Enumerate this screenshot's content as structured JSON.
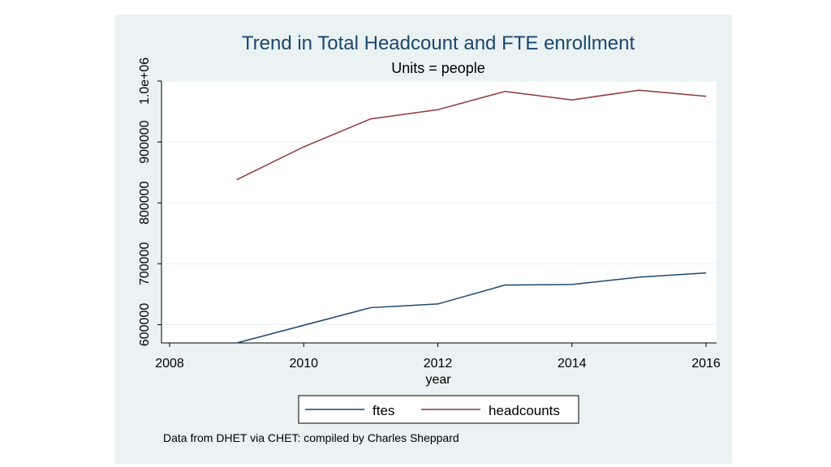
{
  "chart_data": {
    "type": "line",
    "title": "Trend in Total Headcount and FTE enrollment",
    "subtitle": "Units = people",
    "xlabel": "year",
    "ylabel": "",
    "x": [
      2009,
      2010,
      2011,
      2012,
      2013,
      2014,
      2015,
      2016
    ],
    "xlim": [
      2008,
      2016
    ],
    "ylim": [
      570000,
      1000000
    ],
    "x_ticks": [
      2008,
      2010,
      2012,
      2014,
      2016
    ],
    "y_ticks": [
      600000,
      700000,
      800000,
      900000,
      1000000
    ],
    "y_tick_labels": [
      "600000",
      "700000",
      "800000",
      "900000",
      "1.0e+06"
    ],
    "grid": true,
    "legend_position": "bottom",
    "series": [
      {
        "name": "ftes",
        "color": "#1a476f",
        "values": [
          570000,
          599000,
          628000,
          634000,
          665000,
          666000,
          678000,
          685000
        ]
      },
      {
        "name": "headcounts",
        "color": "#90353b",
        "values": [
          838000,
          892000,
          938000,
          953000,
          983000,
          969000,
          985000,
          975000
        ]
      }
    ],
    "note": "Data from DHET via CHET: compiled by Charles Sheppard"
  }
}
